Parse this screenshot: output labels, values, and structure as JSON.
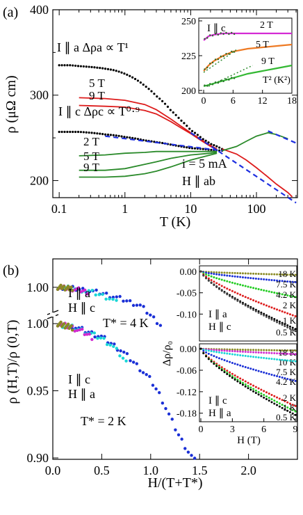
{
  "chart_data": [
    {
      "panel": "(a)",
      "type": "line",
      "xlabel": "T (K)",
      "ylabel": "ρ (μΩ cm)",
      "x_scale": "log",
      "xlim": [
        0.08,
        420
      ],
      "ylim": [
        180,
        400
      ],
      "x_ticks": [
        {
          "v": 0.1,
          "t": "0.1"
        },
        {
          "v": 1,
          "t": "1"
        },
        {
          "v": 10,
          "t": "10"
        },
        {
          "v": 100,
          "t": "100"
        }
      ],
      "y_ticks": [
        {
          "v": 200,
          "t": "200"
        },
        {
          "v": 300,
          "t": "300"
        },
        {
          "v": 400,
          "t": "400"
        }
      ],
      "annotations": {
        "a_label": "I ∥ a  Δρa ∝ T¹",
        "c_label": "I ∥ c  Δρc ∝ T⁰·⁹",
        "a5": "5 T",
        "a9": "9 T",
        "c2": "2 T",
        "c5": "5 T",
        "c9": "9 T",
        "current": "i = 5 mA",
        "field": "H ∥ ab"
      },
      "series": [
        {
          "group": "I∥a",
          "field": "0 T",
          "color": "#000000",
          "x": [
            0.1,
            0.15,
            0.2,
            0.3,
            0.5,
            0.7,
            1,
            1.5,
            2,
            3,
            5,
            7,
            10,
            15,
            20,
            30
          ],
          "y": [
            335,
            335,
            334,
            333,
            331,
            329,
            325,
            318,
            311,
            299,
            282,
            271,
            259,
            249,
            243,
            237
          ]
        },
        {
          "group": "I∥a",
          "field": "0 T (extended)",
          "color": "#dd1c1c",
          "x": [
            30,
            50,
            70,
            100,
            150,
            200,
            300,
            350
          ],
          "y": [
            237,
            231,
            224,
            215,
            204,
            196,
            186,
            181
          ]
        },
        {
          "group": "I∥a",
          "field": "5 T",
          "color": "#dd1c1c",
          "x": [
            0.2,
            0.5,
            1,
            2,
            3,
            5,
            7,
            10,
            15,
            20,
            25
          ],
          "y": [
            297,
            296,
            294,
            289,
            283,
            272,
            264,
            256,
            247,
            241,
            237
          ]
        },
        {
          "group": "I∥a",
          "field": "9 T",
          "color": "#dd1c1c",
          "x": [
            0.2,
            0.5,
            1,
            2,
            3,
            5,
            7,
            10,
            15,
            20,
            25
          ],
          "y": [
            288,
            287,
            286,
            282,
            278,
            269,
            262,
            255,
            246,
            240,
            236
          ]
        },
        {
          "group": "I∥c",
          "field": "0 T",
          "color": "#000000",
          "x": [
            0.1,
            0.2,
            0.3,
            0.5,
            0.7,
            1,
            1.5,
            2,
            3,
            5,
            7,
            10,
            15,
            20,
            30
          ],
          "y": [
            257,
            257,
            256,
            254,
            253,
            251,
            249,
            247,
            245,
            242,
            240,
            238,
            237,
            236,
            235
          ]
        },
        {
          "group": "I∥c",
          "field": "0 T (extended)",
          "color": "#2a8a2a",
          "x": [
            30,
            50,
            70,
            100,
            150,
            200,
            300
          ],
          "y": [
            235,
            240,
            246,
            252,
            256,
            254,
            249
          ]
        },
        {
          "group": "I∥c",
          "field": "2 T",
          "color": "#2a8a2a",
          "x": [
            0.2,
            0.5,
            1,
            2,
            3,
            5,
            10,
            20,
            25
          ],
          "y": [
            229,
            230,
            232,
            233,
            234,
            234,
            234,
            234,
            234
          ]
        },
        {
          "group": "I∥c",
          "field": "5 T",
          "color": "#2a8a2a",
          "x": [
            0.2,
            0.5,
            1,
            2,
            3,
            5,
            10,
            20,
            25
          ],
          "y": [
            212,
            212,
            214,
            219,
            222,
            226,
            230,
            232,
            233
          ]
        },
        {
          "group": "I∥c",
          "field": "9 T",
          "color": "#2a8a2a",
          "x": [
            0.2,
            0.5,
            1,
            2,
            3,
            5,
            10,
            20,
            25
          ],
          "y": [
            204,
            204,
            205,
            208,
            211,
            216,
            224,
            230,
            232
          ]
        }
      ],
      "fits": [
        {
          "color": "#1e2fe0",
          "x": [
            10,
            400
          ],
          "y": [
            256,
            174
          ]
        },
        {
          "color": "#1e2fe0",
          "x": [
            0.5,
            30
          ],
          "y": [
            252,
            235
          ]
        },
        {
          "color": "#1e2fe0",
          "x": [
            150,
            400
          ],
          "y": [
            258,
            244
          ]
        }
      ],
      "inset": {
        "xlabel": "T² (K²)",
        "label": "I ∥ c",
        "xlim": [
          -1,
          18
        ],
        "ylim": [
          198,
          252
        ],
        "x_ticks": [
          {
            "v": 0,
            "t": "0"
          },
          {
            "v": 6,
            "t": "6"
          },
          {
            "v": 12,
            "t": "12"
          },
          {
            "v": 18,
            "t": "18"
          }
        ],
        "y_ticks": [
          {
            "v": 200,
            "t": "200"
          },
          {
            "v": 225,
            "t": "225"
          },
          {
            "v": 250,
            "t": "250"
          }
        ],
        "series": [
          {
            "name": "2 T",
            "color": "#d42ad4",
            "x": [
              0,
              1,
              2,
              4,
              6,
              9,
              12,
              15,
              18
            ],
            "y": [
              236,
              239,
              240,
              241,
              241,
              241,
              241,
              241,
              241
            ]
          },
          {
            "name": "5 T",
            "color": "#ee7a24",
            "x": [
              0,
              1,
              2,
              4,
              6,
              9,
              12,
              15,
              18
            ],
            "y": [
              214,
              218,
              221,
              225,
              228,
              230,
              231,
              232,
              233
            ]
          },
          {
            "name": "9 T",
            "color": "#33b833",
            "x": [
              0,
              1,
              2,
              4,
              6,
              9,
              12,
              15,
              18
            ],
            "y": [
              203,
              204,
              205,
              207,
              209,
              212,
              214,
              216,
              218
            ]
          }
        ]
      }
    },
    {
      "panel": "(b)",
      "type": "scatter",
      "xlabel": "H/(T+T*)",
      "ylabel": "ρ (H,T)/ρ (0,T)",
      "xlim": [
        0,
        2.5
      ],
      "x_ticks": [
        {
          "v": 0,
          "t": "0.0"
        },
        {
          "v": 0.5,
          "t": "0.5"
        },
        {
          "v": 1,
          "t": "1.0"
        },
        {
          "v": 1.5,
          "t": "1.5"
        },
        {
          "v": 2,
          "t": "2.0"
        }
      ],
      "y_ticks_upper": [
        {
          "v": 1,
          "t": "1.00"
        }
      ],
      "y_ticks_lower": [
        {
          "v": 1,
          "t": "1.00"
        },
        {
          "v": 0.95,
          "t": "0.95"
        },
        {
          "v": 0.9,
          "t": "0.90"
        }
      ],
      "annotations": {
        "upper_current": "I ∥ a",
        "upper_field": "H ∥ c",
        "upper_tstar": "T* = 4 K",
        "lower_current": "I ∥ c",
        "lower_field": "H ∥ a",
        "lower_tstar": "T* = 2 K"
      },
      "upper_series": [
        {
          "color": "#1a2fd6",
          "x": [
            0.1,
            0.3,
            0.5,
            0.7,
            0.9,
            1,
            1.05,
            1.1
          ],
          "y": [
            1.0,
            0.998,
            0.995,
            0.99,
            0.984,
            0.976,
            0.972,
            0.968
          ]
        },
        {
          "color": "#19d6d6",
          "x": [
            0.05,
            0.2,
            0.35,
            0.5,
            0.6,
            0.65
          ],
          "y": [
            1.0,
            0.999,
            0.997,
            0.993,
            0.99,
            0.987
          ]
        },
        {
          "color": "#d02ad0",
          "x": [
            0.05,
            0.15,
            0.25,
            0.35
          ],
          "y": [
            1.0,
            0.999,
            0.998,
            0.996
          ]
        },
        {
          "color": "#8a8a24",
          "x": [
            0.05,
            0.1,
            0.15,
            0.2
          ],
          "y": [
            1.0,
            1.0,
            0.999,
            0.999
          ]
        }
      ],
      "lower_series": [
        {
          "color": "#1a2fd6",
          "x": [
            0.2,
            0.5,
            0.7,
            0.9,
            1,
            1.1,
            1.2,
            1.3,
            1.4,
            1.45
          ],
          "y": [
            0.998,
            0.99,
            0.98,
            0.966,
            0.958,
            0.946,
            0.93,
            0.915,
            0.903,
            0.898
          ]
        },
        {
          "color": "#19d6d6",
          "x": [
            0.1,
            0.3,
            0.5,
            0.6,
            0.7,
            0.75
          ],
          "y": [
            0.999,
            0.995,
            0.989,
            0.984,
            0.976,
            0.971
          ]
        },
        {
          "color": "#d02ad0",
          "x": [
            0.05,
            0.2,
            0.3,
            0.4
          ],
          "y": [
            1.0,
            0.997,
            0.994,
            0.99
          ]
        },
        {
          "color": "#8a8a24",
          "x": [
            0.05,
            0.1,
            0.15,
            0.2
          ],
          "y": [
            1.0,
            0.999,
            0.998,
            0.997
          ]
        }
      ],
      "inset_top": {
        "xlim": [
          0,
          9
        ],
        "ylim": [
          -0.16,
          0.01
        ],
        "y_ticks": [
          {
            "v": 0,
            "t": "0.00"
          },
          {
            "v": -0.05,
            "t": "-0.05"
          },
          {
            "v": -0.1,
            "t": "-0.10"
          }
        ],
        "label_current": "I ∥ a",
        "label_field": "H ∥ c",
        "series": [
          {
            "name": "18 K",
            "color": "#8a8a24",
            "end": -0.008
          },
          {
            "name": "7.5 K",
            "color": "#1a2fd6",
            "end": -0.025
          },
          {
            "name": "4.2 K",
            "color": "#22cc22",
            "end": -0.06
          },
          {
            "name": "2 K",
            "color": "#dd1c1c",
            "end": -0.105
          },
          {
            "name": "1 K",
            "color": "#000000",
            "end": -0.135
          },
          {
            "name": "0.5 K",
            "color": "#444444",
            "end": -0.14
          }
        ]
      },
      "inset_bottom": {
        "xlabel": "H (T)",
        "xlim": [
          0,
          9
        ],
        "ylim": [
          -0.2,
          0.01
        ],
        "x_ticks": [
          {
            "v": 0,
            "t": "0"
          },
          {
            "v": 3,
            "t": "3"
          },
          {
            "v": 6,
            "t": "6"
          },
          {
            "v": 9,
            "t": "9"
          }
        ],
        "y_ticks": [
          {
            "v": 0,
            "t": "0.00"
          },
          {
            "v": -0.06,
            "t": "-0.06"
          },
          {
            "v": -0.12,
            "t": "-0.12"
          },
          {
            "v": -0.18,
            "t": "-0.18"
          }
        ],
        "label_current": "I ∥ c",
        "label_field": "H ∥ a",
        "series": [
          {
            "name": "18 K",
            "color": "#8a8a24",
            "end": -0.005
          },
          {
            "name": "10 K",
            "color": "#d02ad0",
            "end": -0.015
          },
          {
            "name": "7.5 K",
            "color": "#19d6d6",
            "end": -0.035
          },
          {
            "name": "4.2 K",
            "color": "#1a2fd6",
            "end": -0.09
          },
          {
            "name": "2 K",
            "color": "#dd1c1c",
            "end": -0.16
          },
          {
            "name": "1 K",
            "color": "#22cc22",
            "end": -0.175
          },
          {
            "name": "0.5 K",
            "color": "#000000",
            "end": -0.185
          }
        ],
        "ylabel": "Δρ/ρ0"
      }
    }
  ]
}
